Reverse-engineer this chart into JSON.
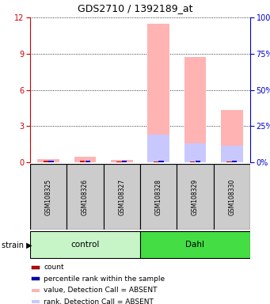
{
  "title": "GDS2710 / 1392189_at",
  "samples": [
    "GSM108325",
    "GSM108326",
    "GSM108327",
    "GSM108328",
    "GSM108329",
    "GSM108330"
  ],
  "ylim_left": [
    0,
    12
  ],
  "ylim_right": [
    0,
    100
  ],
  "yticks_left": [
    0,
    3,
    6,
    9,
    12
  ],
  "yticks_right": [
    0,
    25,
    50,
    75,
    100
  ],
  "value_absent": [
    0.28,
    0.48,
    0.18,
    11.5,
    8.7,
    4.3
  ],
  "rank_absent": [
    0.0,
    0.0,
    0.0,
    2.3,
    1.6,
    1.4
  ],
  "count": [
    0.12,
    0.15,
    0.05,
    0.08,
    0.07,
    0.06
  ],
  "percentile_rank": [
    0.1,
    0.12,
    0.1,
    0.1,
    0.1,
    0.1
  ],
  "bar_width": 0.6,
  "color_value_absent": "#ffb3b3",
  "color_rank_absent": "#c8c8ff",
  "color_count": "#cc0000",
  "color_percentile": "#0000cc",
  "color_left_axis": "#cc0000",
  "color_right_axis": "#0000cc",
  "bg_color": "#ffffff",
  "grid_color": "#000000",
  "color_control": "#c8f5c8",
  "color_dahl": "#44dd44",
  "color_sample_box": "#cccccc",
  "legend_items": [
    {
      "label": "count",
      "color": "#cc0000"
    },
    {
      "label": "percentile rank within the sample",
      "color": "#0000cc"
    },
    {
      "label": "value, Detection Call = ABSENT",
      "color": "#ffb3b3"
    },
    {
      "label": "rank, Detection Call = ABSENT",
      "color": "#c8c8ff"
    }
  ]
}
